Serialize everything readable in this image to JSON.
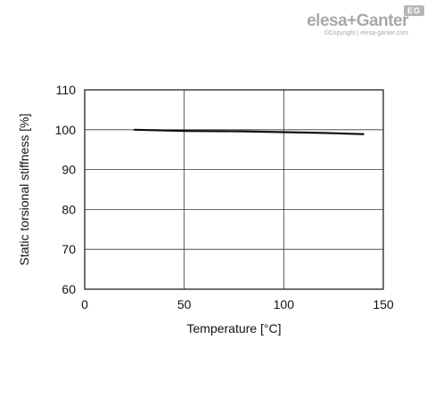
{
  "brand": {
    "logo_text": "elesa+Ganter",
    "badge": "EG",
    "copyright": "©Copyright | elesa-ganter.com"
  },
  "chart_data": {
    "type": "line",
    "title": "",
    "xlabel": "Temperature [°C]",
    "ylabel": "Static torsional stiffness [%]",
    "xlim": [
      0,
      150
    ],
    "ylim": [
      60,
      110
    ],
    "xticks": [
      0,
      50,
      100,
      150
    ],
    "yticks": [
      60,
      70,
      80,
      90,
      100,
      110
    ],
    "grid": true,
    "series": [
      {
        "x": [
          25,
          50,
          80,
          100,
          120,
          140
        ],
        "y": [
          100,
          99.7,
          99.6,
          99.4,
          99.2,
          98.9
        ]
      }
    ],
    "colors": {
      "line": "#111111",
      "grid": "#333333",
      "frame": "#111111"
    }
  }
}
